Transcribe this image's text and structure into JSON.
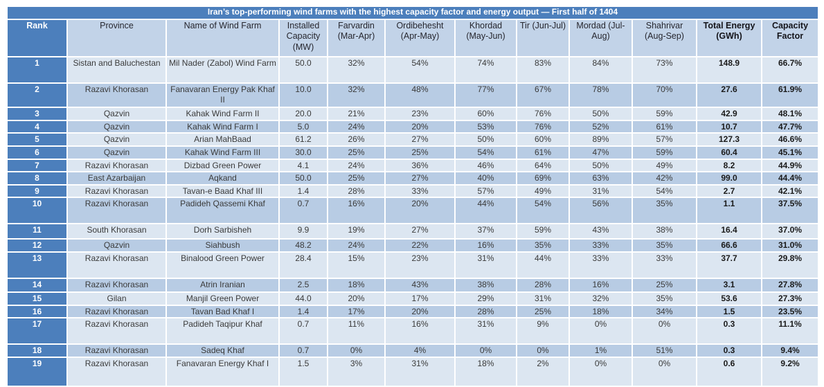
{
  "chart_data": {
    "type": "table",
    "title": "Iran’s top-performing wind farms with the highest capacity factor and energy output — First half of 1404",
    "columns": [
      "Rank",
      "Province",
      "Name of Wind Farm",
      "Installed Capacity (MW)",
      "Farvardin (Mar-Apr)",
      "Ordibehesht (Apr-May)",
      "Khordad (May-Jun)",
      "Tir (Jun-Jul)",
      "Mordad (Jul-Aug)",
      "Shahrivar (Aug-Sep)",
      "Total Energy (GWh)",
      "Capacity Factor"
    ],
    "rows": [
      [
        "1",
        "Sistan and Baluchestan",
        "Mil Nader (Zabol) Wind Farm",
        "50.0",
        "32%",
        "54%",
        "74%",
        "83%",
        "84%",
        "73%",
        "148.9",
        "66.7%"
      ],
      [
        "2",
        "Razavi Khorasan",
        "Fanavaran Energy Pak Khaf II",
        "10.0",
        "32%",
        "48%",
        "77%",
        "67%",
        "78%",
        "70%",
        "27.6",
        "61.9%"
      ],
      [
        "3",
        "Qazvin",
        "Kahak Wind Farm II",
        "20.0",
        "21%",
        "23%",
        "60%",
        "76%",
        "50%",
        "59%",
        "42.9",
        "48.1%"
      ],
      [
        "4",
        "Qazvin",
        "Kahak Wind Farm I",
        "5.0",
        "24%",
        "20%",
        "53%",
        "76%",
        "52%",
        "61%",
        "10.7",
        "47.7%"
      ],
      [
        "5",
        "Qazvin",
        "Arian MahBaad",
        "61.2",
        "26%",
        "27%",
        "50%",
        "60%",
        "89%",
        "57%",
        "127.3",
        "46.6%"
      ],
      [
        "6",
        "Qazvin",
        "Kahak Wind Farm III",
        "30.0",
        "25%",
        "25%",
        "54%",
        "61%",
        "47%",
        "59%",
        "60.4",
        "45.1%"
      ],
      [
        "7",
        "Razavi Khorasan",
        "Dizbad Green Power",
        "4.1",
        "24%",
        "36%",
        "46%",
        "64%",
        "50%",
        "49%",
        "8.2",
        "44.9%"
      ],
      [
        "8",
        "East Azarbaijan",
        "Aqkand",
        "50.0",
        "25%",
        "27%",
        "40%",
        "69%",
        "63%",
        "42%",
        "99.0",
        "44.4%"
      ],
      [
        "9",
        "Razavi Khorasan",
        "Tavan-e Baad Khaf III",
        "1.4",
        "28%",
        "33%",
        "57%",
        "49%",
        "31%",
        "54%",
        "2.7",
        "42.1%"
      ],
      [
        "10",
        "Razavi Khorasan",
        "Padideh Qassemi Khaf",
        "0.7",
        "16%",
        "20%",
        "44%",
        "54%",
        "56%",
        "35%",
        "1.1",
        "37.5%"
      ],
      [
        "11",
        "South Khorasan",
        "Dorh Sarbisheh",
        "9.9",
        "19%",
        "27%",
        "37%",
        "59%",
        "43%",
        "38%",
        "16.4",
        "37.0%"
      ],
      [
        "12",
        "Qazvin",
        "Siahbush",
        "48.2",
        "24%",
        "22%",
        "16%",
        "35%",
        "33%",
        "35%",
        "66.6",
        "31.0%"
      ],
      [
        "13",
        "Razavi Khorasan",
        "Binalood Green Power",
        "28.4",
        "15%",
        "23%",
        "31%",
        "44%",
        "33%",
        "33%",
        "37.7",
        "29.8%"
      ],
      [
        "14",
        "Razavi Khorasan",
        "Atrin Iranian",
        "2.5",
        "18%",
        "43%",
        "38%",
        "28%",
        "16%",
        "25%",
        "3.1",
        "27.8%"
      ],
      [
        "15",
        "Gilan",
        "Manjil Green Power",
        "44.0",
        "20%",
        "17%",
        "29%",
        "31%",
        "32%",
        "35%",
        "53.6",
        "27.3%"
      ],
      [
        "16",
        "Razavi Khorasan",
        "Tavan Bad Khaf I",
        "1.4",
        "17%",
        "20%",
        "28%",
        "25%",
        "18%",
        "34%",
        "1.5",
        "23.5%"
      ],
      [
        "17",
        "Razavi Khorasan",
        "Padideh Taqipur Khaf",
        "0.7",
        "11%",
        "16%",
        "31%",
        "9%",
        "0%",
        "0%",
        "0.3",
        "11.1%"
      ],
      [
        "18",
        "Razavi Khorasan",
        "Sadeq Khaf",
        "0.7",
        "0%",
        "4%",
        "0%",
        "0%",
        "1%",
        "51%",
        "0.3",
        "9.4%"
      ],
      [
        "19",
        "Razavi Khorasan",
        "Fanavaran Energy Khaf I",
        "1.5",
        "3%",
        "31%",
        "18%",
        "2%",
        "0%",
        "0%",
        "0.6",
        "9.2%"
      ]
    ]
  },
  "colors": {
    "title_bg": "#4c7fbc",
    "rank_bg": "#4c7fbc",
    "header_bg": "#c2d3e8",
    "row_light": "#dce6f1",
    "row_dark": "#b8cce4",
    "text": "#3a3a3a",
    "header_text": "#26262e",
    "white": "#ffffff"
  }
}
